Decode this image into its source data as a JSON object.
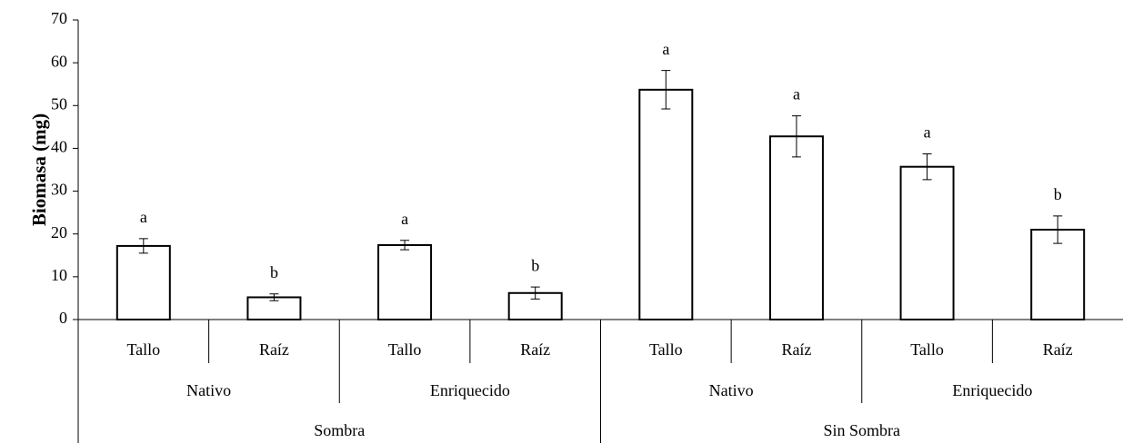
{
  "chart_data": {
    "type": "bar",
    "y_label": "Biomasa (mg)",
    "category_tree": [
      {
        "name": "Sombra",
        "children": [
          {
            "name": "Nativo",
            "children": [
              "Tallo",
              "Raíz"
            ]
          },
          {
            "name": "Enriquecido",
            "children": [
              "Tallo",
              "Raíz"
            ]
          }
        ]
      },
      {
        "name": "Sin Sombra",
        "children": [
          {
            "name": "Nativo",
            "children": [
              "Tallo",
              "Raíz"
            ]
          },
          {
            "name": "Enriquecido",
            "children": [
              "Tallo",
              "Raíz"
            ]
          }
        ]
      }
    ],
    "values": [
      17.2,
      5.2,
      17.4,
      6.2,
      53.7,
      42.8,
      35.7,
      21.0
    ],
    "errors": [
      1.7,
      0.8,
      1.1,
      1.4,
      4.5,
      4.8,
      3.0,
      3.2
    ],
    "annotations": [
      "a",
      "b",
      "a",
      "b",
      "a",
      "a",
      "a",
      "b"
    ],
    "color": "#ffffff",
    "ylim": [
      0,
      70
    ],
    "yticks": [
      0,
      10,
      20,
      30,
      40,
      50,
      60,
      70
    ],
    "grid": false
  }
}
